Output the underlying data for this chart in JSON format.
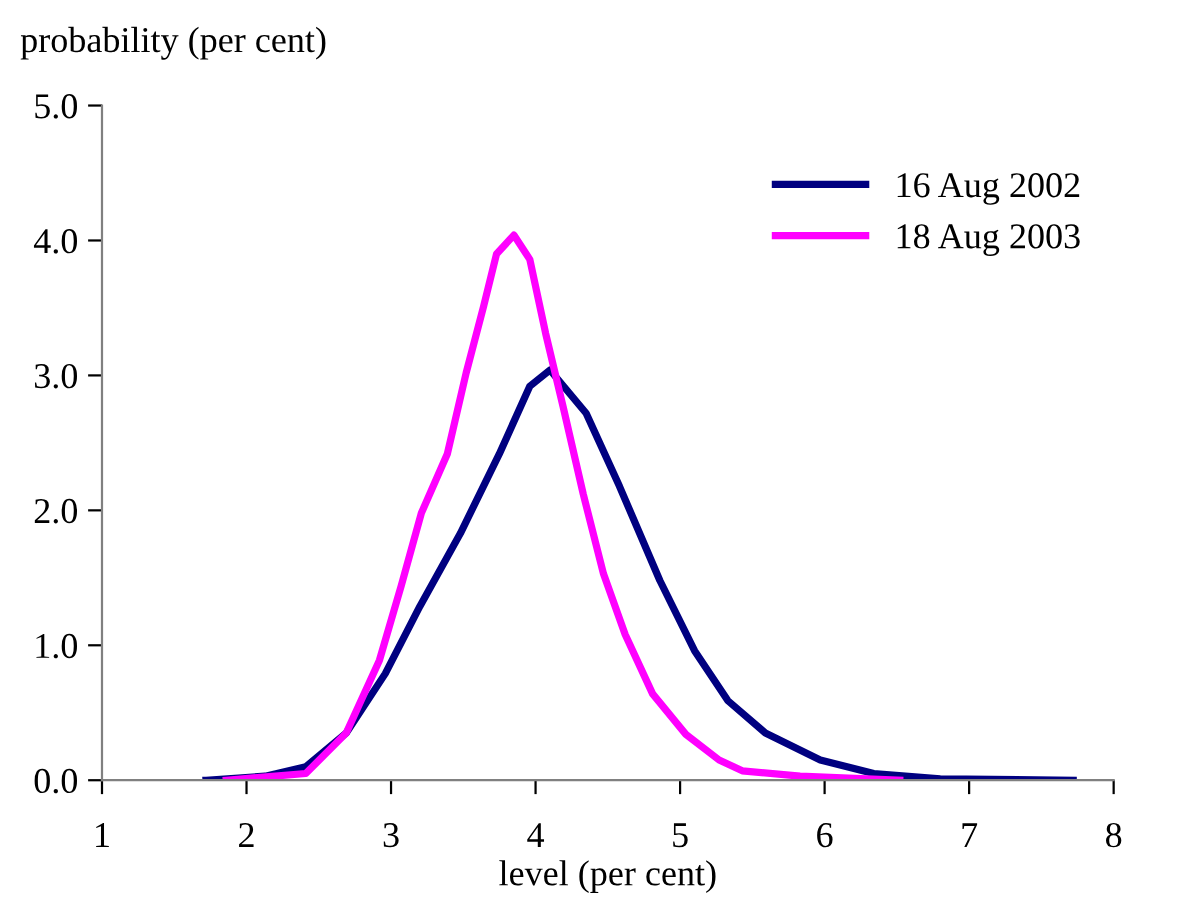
{
  "chart_data": {
    "type": "line",
    "ylabel": "probability (per cent)",
    "xlabel": "level (per cent)",
    "xlim": [
      1,
      8
    ],
    "xticks": [
      1,
      2,
      3,
      4,
      5,
      6,
      7,
      8
    ],
    "ylim": [
      0,
      5
    ],
    "yticks": [
      {
        "value": 0,
        "label": "0.0"
      },
      {
        "value": 1,
        "label": "1.0"
      },
      {
        "value": 2,
        "label": "2.0"
      },
      {
        "value": 3,
        "label": "3.0"
      },
      {
        "value": 4,
        "label": "4.0"
      },
      {
        "value": 5,
        "label": "5.0"
      }
    ],
    "grid": false,
    "legend": "top right",
    "marker": "none",
    "line_style": "solid",
    "series": [
      {
        "name": "16 Aug 2002",
        "color": "#000080",
        "x": [
          1.72,
          2.13,
          2.41,
          2.69,
          2.96,
          3.2,
          3.48,
          3.75,
          3.96,
          4.1,
          4.35,
          4.58,
          4.86,
          5.1,
          5.33,
          5.59,
          5.97,
          6.34,
          6.8,
          7.72
        ],
        "values": [
          0,
          0.03,
          0.1,
          0.35,
          0.79,
          1.29,
          1.83,
          2.42,
          2.92,
          3.04,
          2.72,
          2.18,
          1.48,
          0.96,
          0.59,
          0.35,
          0.15,
          0.05,
          0.01,
          0
        ]
      },
      {
        "name": "18 Aug 2003",
        "color": "#ff00ff",
        "x": [
          1.86,
          2.41,
          2.69,
          2.92,
          3.07,
          3.21,
          3.39,
          3.52,
          3.64,
          3.73,
          3.85,
          3.96,
          4.07,
          4.19,
          4.33,
          4.47,
          4.62,
          4.81,
          5.04,
          5.27,
          5.43,
          5.83,
          6.52
        ],
        "values": [
          0,
          0.05,
          0.35,
          0.89,
          1.44,
          1.98,
          2.42,
          3.02,
          3.51,
          3.9,
          4.04,
          3.86,
          3.31,
          2.77,
          2.12,
          1.53,
          1.08,
          0.64,
          0.34,
          0.15,
          0.07,
          0.03,
          0
        ]
      }
    ]
  }
}
